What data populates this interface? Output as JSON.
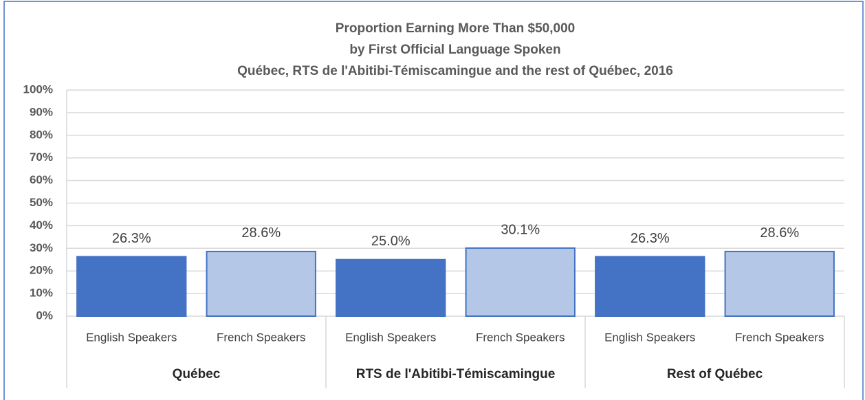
{
  "chart_data": {
    "type": "bar",
    "title": [
      "Proportion Earning More Than $50,000",
      "by First Official Language Spoken",
      "Québec, RTS de l'Abitibi-Témiscamingue and the rest of Québec, 2016"
    ],
    "categories": [
      "English Speakers",
      "French Speakers",
      "English Speakers",
      "French Speakers",
      "English Speakers",
      "French Speakers"
    ],
    "groups": [
      "Québec",
      "RTS de l'Abitibi-Témiscamingue",
      "Rest of Québec"
    ],
    "values": [
      26.3,
      28.6,
      25.0,
      30.1,
      26.3,
      28.6
    ],
    "value_labels": [
      "26.3%",
      "28.6%",
      "25.0%",
      "30.1%",
      "26.3%",
      "28.6%"
    ],
    "colors": [
      "#4472c4",
      "#b4c7e7",
      "#4472c4",
      "#b4c7e7",
      "#4472c4",
      "#b4c7e7"
    ],
    "ylim": [
      0,
      100
    ],
    "yticks": [
      {
        "value": 0,
        "label": "0%"
      },
      {
        "value": 10,
        "label": "10%"
      },
      {
        "value": 20,
        "label": "20%"
      },
      {
        "value": 30,
        "label": "30%"
      },
      {
        "value": 40,
        "label": "40%"
      },
      {
        "value": 50,
        "label": "50%"
      },
      {
        "value": 60,
        "label": "60%"
      },
      {
        "value": 70,
        "label": "70%"
      },
      {
        "value": 80,
        "label": "80%"
      },
      {
        "value": 90,
        "label": "90%"
      },
      {
        "value": 100,
        "label": "100%"
      }
    ],
    "grid": true
  }
}
